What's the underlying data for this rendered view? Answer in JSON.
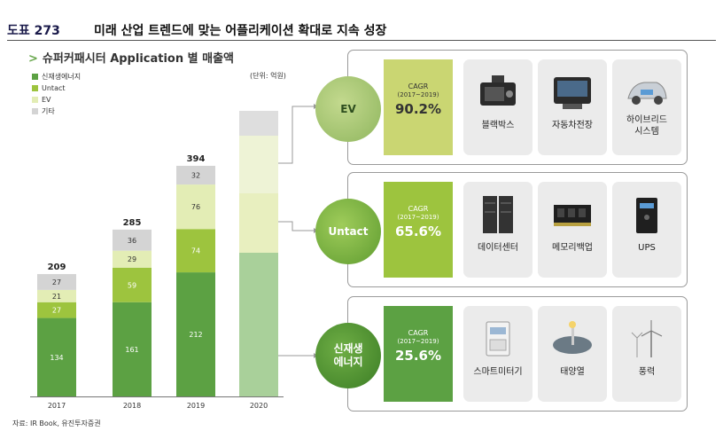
{
  "header": {
    "number": "도표 273",
    "title": "미래 산업 트렌드에 맞는 어플리케이션 확대로 지속 성장"
  },
  "subtitle": "슈퍼커패시터 Application 별 매출액",
  "unit": "(단위: 억원)",
  "source": "자료: IR Book, 유진투자증권",
  "colors": {
    "green": "#5ca143",
    "lime": "#9dc43e",
    "pale": "#e3edb5",
    "gray": "#d4d4d4",
    "circle": "#7ab548"
  },
  "chart_data": {
    "type": "bar",
    "stacked": true,
    "categories": [
      "2017",
      "2018",
      "2019",
      "2020"
    ],
    "series": [
      {
        "name": "신재생에너지",
        "values": [
          134,
          161,
          212,
          null
        ]
      },
      {
        "name": "Untact",
        "values": [
          27,
          59,
          74,
          null
        ]
      },
      {
        "name": "EV",
        "values": [
          21,
          29,
          76,
          null
        ]
      },
      {
        "name": "기타",
        "values": [
          27,
          36,
          32,
          null
        ]
      }
    ],
    "totals": [
      209,
      285,
      394,
      null
    ],
    "legend": [
      "신재생에너지",
      "Untact",
      "EV",
      "기타"
    ],
    "legend_position": "top-left"
  },
  "panels": [
    {
      "name": "EV",
      "cagr_label": "CAGR",
      "cagr_period": "(2017~2019)",
      "cagr_value": "90.2%",
      "items": [
        {
          "label": "블랙박스",
          "icon": "dashcam-icon"
        },
        {
          "label": "자동차전장",
          "icon": "car-dashboard-icon"
        },
        {
          "label": "하이브리드\n시스템",
          "icon": "hybrid-car-icon"
        }
      ]
    },
    {
      "name": "Untact",
      "cagr_label": "CAGR",
      "cagr_period": "(2017~2019)",
      "cagr_value": "65.6%",
      "items": [
        {
          "label": "데이터센터",
          "icon": "server-rack-icon"
        },
        {
          "label": "메모리백업",
          "icon": "memory-module-icon"
        },
        {
          "label": "UPS",
          "icon": "ups-icon"
        }
      ]
    },
    {
      "name": "신재생\n에너지",
      "cagr_label": "CAGR",
      "cagr_period": "(2017~2019)",
      "cagr_value": "25.6%",
      "items": [
        {
          "label": "스마트미터기",
          "icon": "smart-meter-icon"
        },
        {
          "label": "태양열",
          "icon": "solar-thermal-icon"
        },
        {
          "label": "풍력",
          "icon": "wind-turbine-icon"
        }
      ]
    }
  ]
}
